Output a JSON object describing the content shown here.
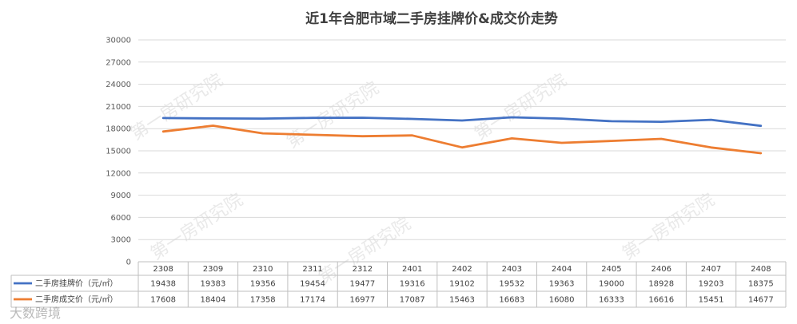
{
  "chart_data": {
    "type": "line",
    "title": "近1年合肥市域二手房挂牌价&成交价走势",
    "categories": [
      "2308",
      "2309",
      "2310",
      "2311",
      "2312",
      "2401",
      "2402",
      "2403",
      "2404",
      "2405",
      "2406",
      "2407",
      "2408"
    ],
    "series": [
      {
        "name": "二手房挂牌价（元/㎡）",
        "color": "#4472c4",
        "values": [
          19438,
          19383,
          19356,
          19454,
          19477,
          19316,
          19102,
          19532,
          19363,
          19000,
          18928,
          19203,
          18375
        ]
      },
      {
        "name": "二手房成交价（元/㎡）",
        "color": "#ed7d31",
        "values": [
          17608,
          18404,
          17358,
          17174,
          16977,
          17087,
          15463,
          16683,
          16080,
          16333,
          16616,
          15451,
          14677
        ]
      }
    ],
    "ylim": [
      0,
      30000
    ],
    "yticks": [
      0,
      3000,
      6000,
      9000,
      12000,
      15000,
      18000,
      21000,
      24000,
      27000,
      30000
    ],
    "grid": true,
    "legend": "data-table",
    "xlabel": "",
    "ylabel": ""
  },
  "watermark": "第一房研究院",
  "source_mark": "大数跨境"
}
